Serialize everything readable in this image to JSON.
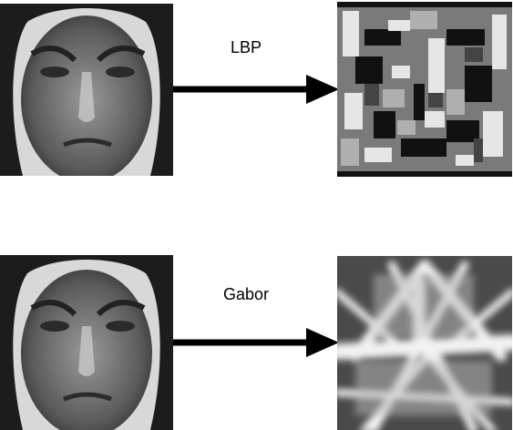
{
  "rows": [
    {
      "label": "LBP",
      "input_image": "grayscale-face-photo",
      "output_image": "lbp-texture-map"
    },
    {
      "label": "Gabor",
      "input_image": "grayscale-face-photo",
      "output_image": "gabor-filter-response"
    }
  ],
  "colors": {
    "arrow": "#000000",
    "background": "#ffffff"
  }
}
